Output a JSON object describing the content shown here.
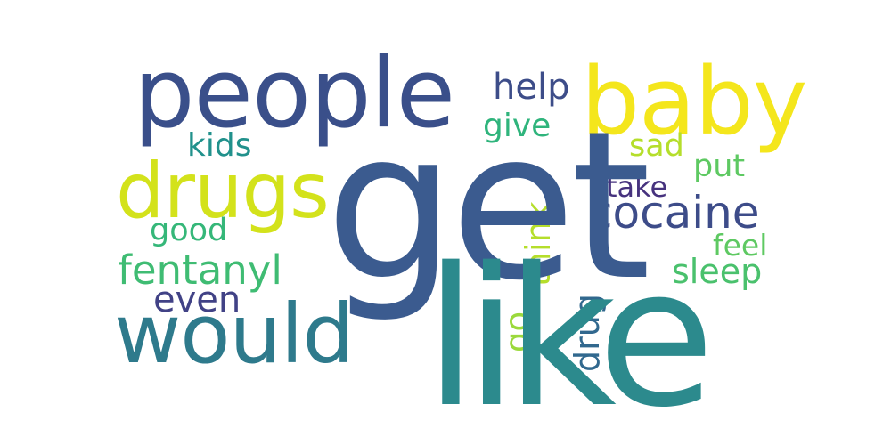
{
  "words": {
    "get": {
      "text": "get",
      "color": "#3b5b8f"
    },
    "like": {
      "text": "like",
      "color": "#2c8a8d"
    },
    "people": {
      "text": "people",
      "color": "#3a4f8a"
    },
    "baby": {
      "text": "baby",
      "color": "#f4e61c"
    },
    "drugs": {
      "text": "drugs",
      "color": "#d3e21b"
    },
    "would": {
      "text": "would",
      "color": "#2e7a8c"
    },
    "cocaine": {
      "text": "cocaine",
      "color": "#3d4c89"
    },
    "fentanyl": {
      "text": "fentanyl",
      "color": "#3fbc73"
    },
    "sleep": {
      "text": "sleep",
      "color": "#4ac16d"
    },
    "even": {
      "text": "even",
      "color": "#414286"
    },
    "help": {
      "text": "help",
      "color": "#3d4d89"
    },
    "kids": {
      "text": "kids",
      "color": "#21918c"
    },
    "give": {
      "text": "give",
      "color": "#2fb47c"
    },
    "sad": {
      "text": "sad",
      "color": "#b5de2b"
    },
    "put": {
      "text": "put",
      "color": "#5ec962"
    },
    "take": {
      "text": "take",
      "color": "#46327e"
    },
    "good": {
      "text": "good",
      "color": "#35b779"
    },
    "feel": {
      "text": "feel",
      "color": "#5ec962"
    },
    "think": {
      "text": "think",
      "color": "#b5de2b"
    },
    "drug": {
      "text": "drug",
      "color": "#31688e"
    },
    "go": {
      "text": "go",
      "color": "#9bd93c"
    }
  }
}
